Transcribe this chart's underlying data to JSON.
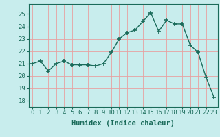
{
  "x": [
    0,
    1,
    2,
    3,
    4,
    5,
    6,
    7,
    8,
    9,
    10,
    11,
    12,
    13,
    14,
    15,
    16,
    17,
    18,
    19,
    20,
    21,
    22,
    23
  ],
  "y": [
    21.0,
    21.2,
    20.4,
    21.0,
    21.2,
    20.9,
    20.9,
    20.9,
    20.8,
    21.0,
    21.9,
    23.0,
    23.5,
    23.7,
    24.4,
    25.1,
    23.6,
    24.5,
    24.2,
    24.2,
    22.5,
    21.9,
    19.9,
    18.3
  ],
  "line_color": "#1a6b5a",
  "marker": "+",
  "marker_size": 4,
  "marker_lw": 1.2,
  "bg_color": "#c8eded",
  "grid_color": "#e8a0a0",
  "xlabel": "Humidex (Indice chaleur)",
  "ylim": [
    17.5,
    25.8
  ],
  "xlim": [
    -0.5,
    23.5
  ],
  "yticks": [
    18,
    19,
    20,
    21,
    22,
    23,
    24,
    25
  ],
  "xticks": [
    0,
    1,
    2,
    3,
    4,
    5,
    6,
    7,
    8,
    9,
    10,
    11,
    12,
    13,
    14,
    15,
    16,
    17,
    18,
    19,
    20,
    21,
    22,
    23
  ],
  "font_color": "#1a6b5a",
  "tick_font_size": 6.5,
  "xlabel_font_size": 7.5,
  "linewidth": 1.0
}
